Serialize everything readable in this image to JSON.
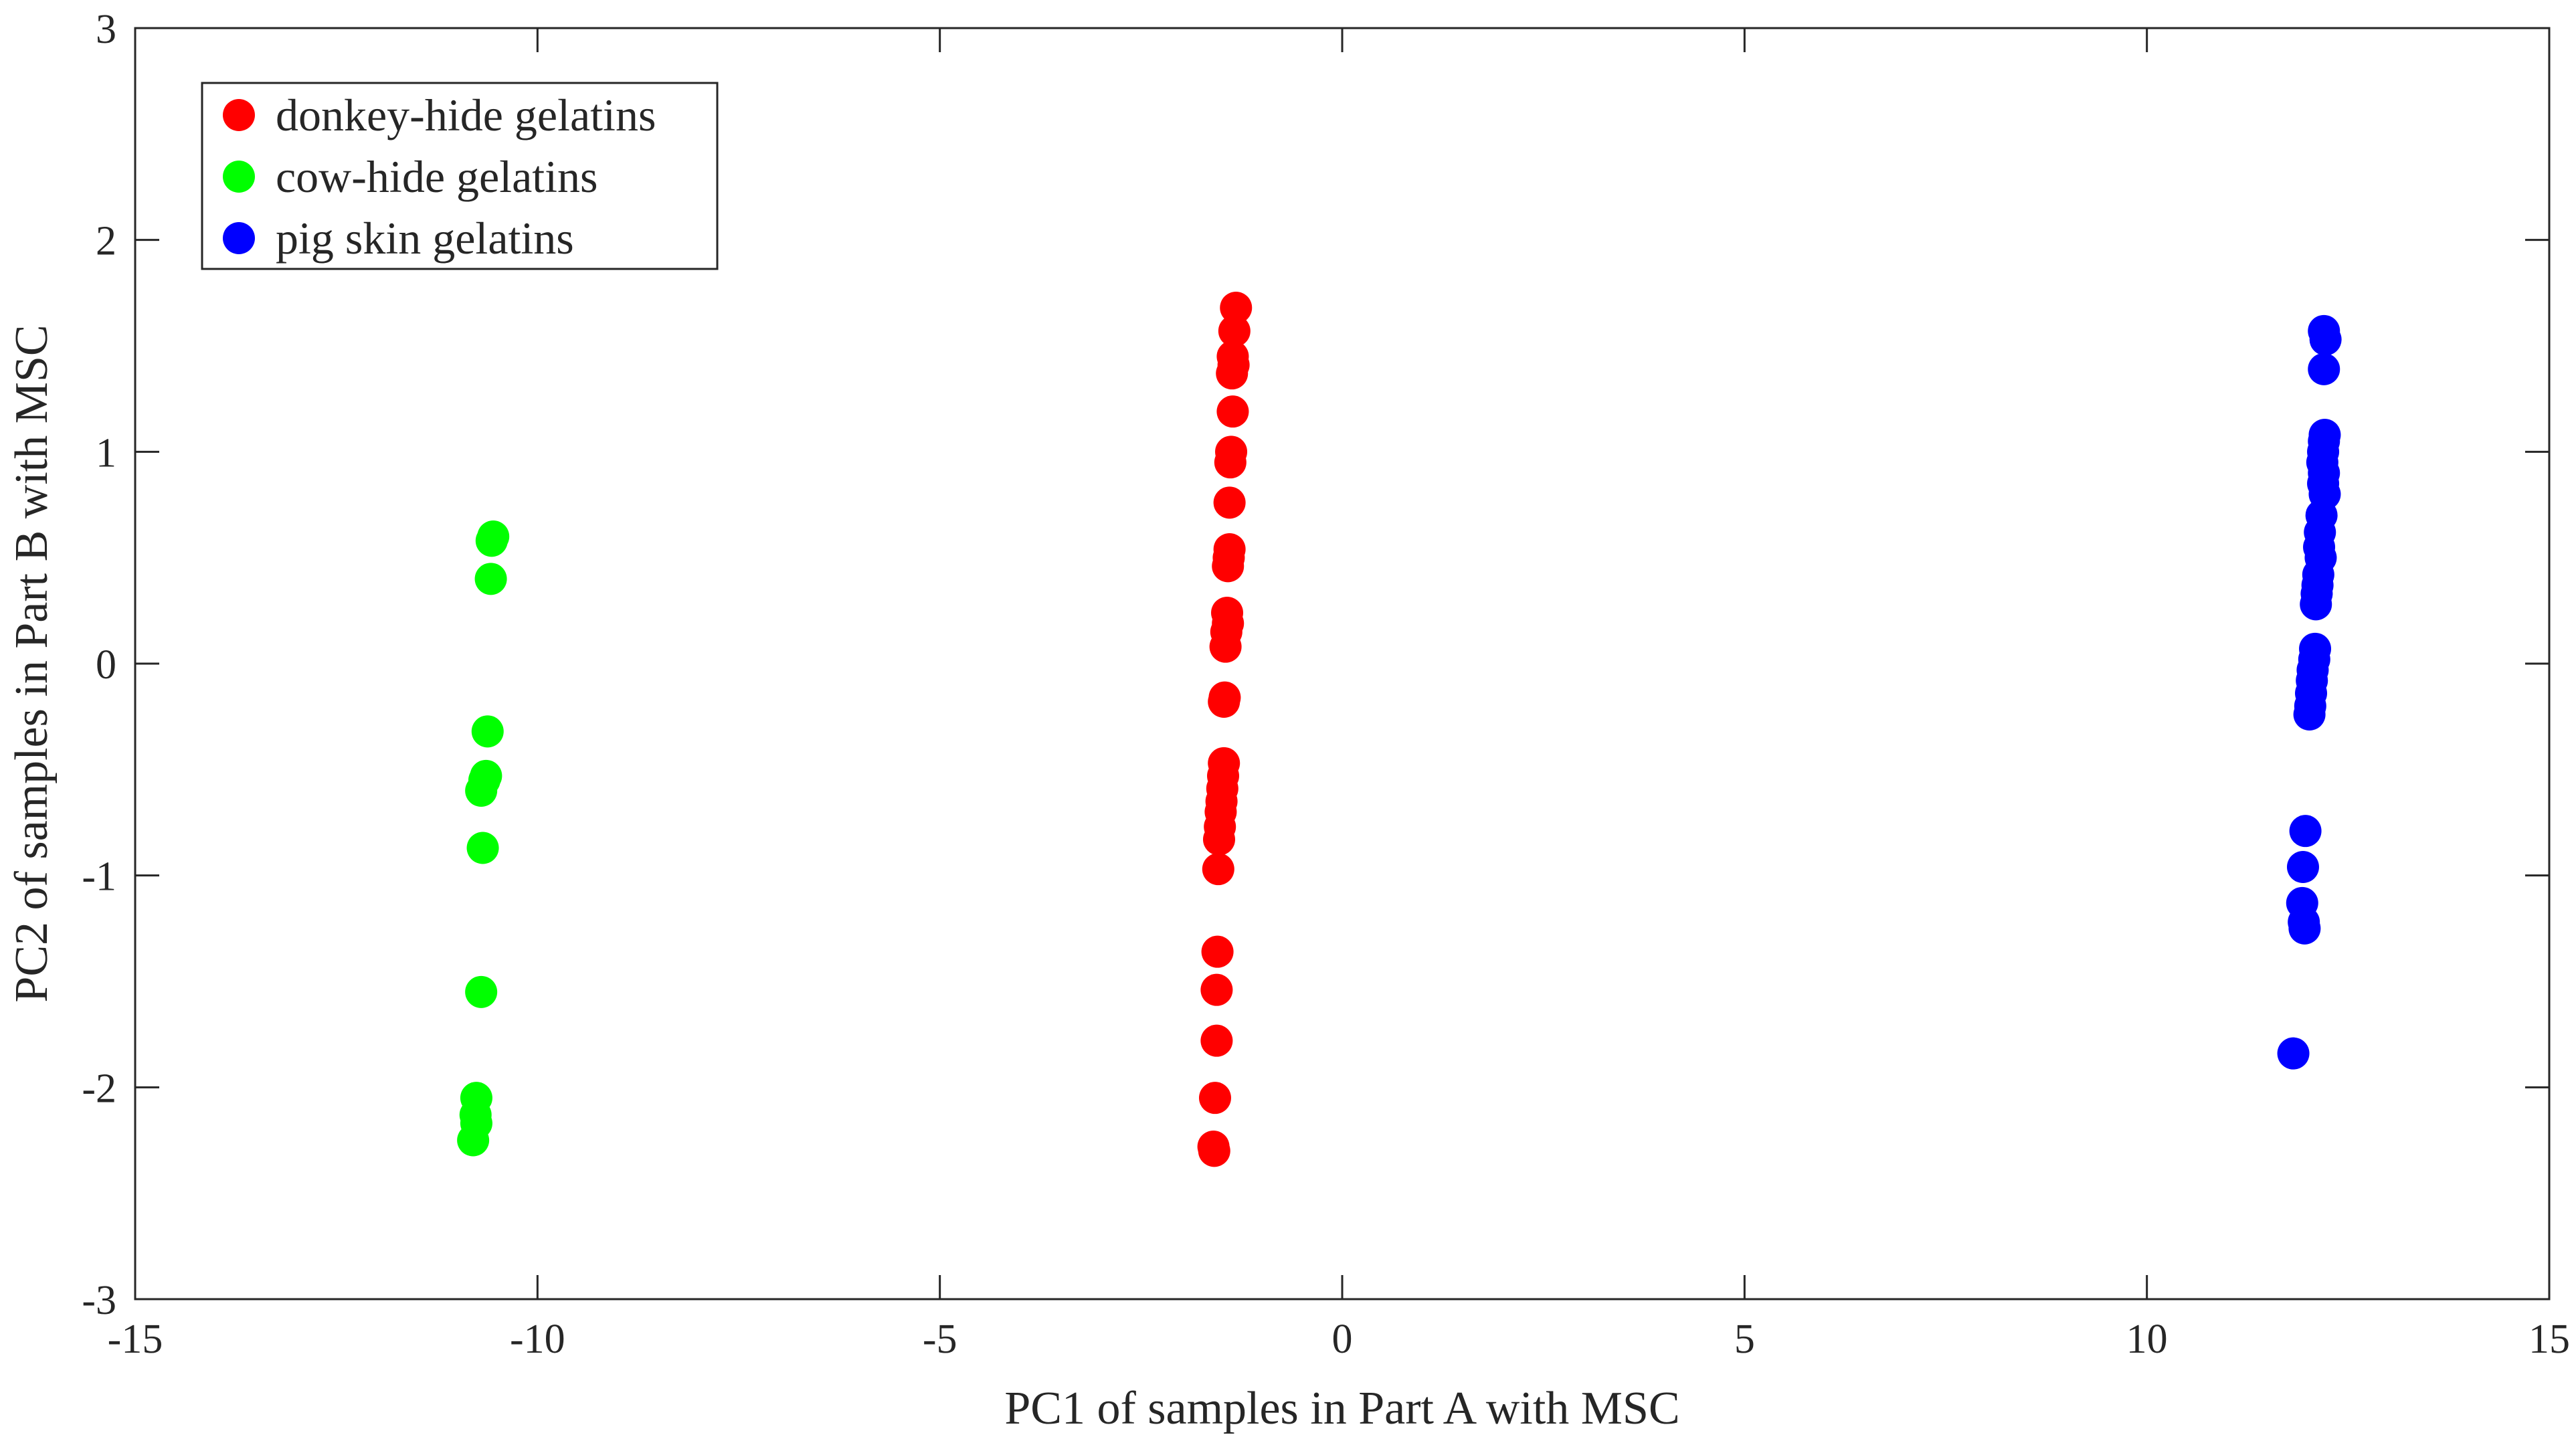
{
  "chart_data": {
    "type": "scatter",
    "title": "",
    "xlabel": "PC1 of samples in Part A with MSC",
    "ylabel": "PC2 of samples in Part B with MSC",
    "xlim": [
      -15,
      15
    ],
    "ylim": [
      -3,
      3
    ],
    "xticks": [
      "-15",
      "-10",
      "-5",
      "0",
      "5",
      "10",
      "15"
    ],
    "yticks": [
      "-3",
      "-2",
      "-1",
      "0",
      "1",
      "2",
      "3"
    ],
    "grid": false,
    "legend_position": "top-left",
    "series": [
      {
        "name": "donkey-hide gelatins",
        "color": "#ff0000",
        "points": [
          [
            -1.32,
            1.68
          ],
          [
            -1.34,
            1.57
          ],
          [
            -1.36,
            1.45
          ],
          [
            -1.35,
            1.41
          ],
          [
            -1.37,
            1.37
          ],
          [
            -1.36,
            1.19
          ],
          [
            -1.38,
            1.0
          ],
          [
            -1.39,
            0.95
          ],
          [
            -1.4,
            0.76
          ],
          [
            -1.4,
            0.54
          ],
          [
            -1.41,
            0.5
          ],
          [
            -1.42,
            0.46
          ],
          [
            -1.43,
            0.24
          ],
          [
            -1.42,
            0.19
          ],
          [
            -1.44,
            0.15
          ],
          [
            -1.45,
            0.08
          ],
          [
            -1.46,
            -0.16
          ],
          [
            -1.47,
            -0.18
          ],
          [
            -1.47,
            -0.47
          ],
          [
            -1.48,
            -0.53
          ],
          [
            -1.49,
            -0.59
          ],
          [
            -1.5,
            -0.65
          ],
          [
            -1.51,
            -0.7
          ],
          [
            -1.52,
            -0.77
          ],
          [
            -1.53,
            -0.83
          ],
          [
            -1.54,
            -0.97
          ],
          [
            -1.55,
            -1.36
          ],
          [
            -1.56,
            -1.54
          ],
          [
            -1.56,
            -1.78
          ],
          [
            -1.58,
            -2.05
          ],
          [
            -1.6,
            -2.28
          ],
          [
            -1.59,
            -2.3
          ]
        ]
      },
      {
        "name": "cow-hide gelatins",
        "color": "#00ff00",
        "points": [
          [
            -10.55,
            0.6
          ],
          [
            -10.57,
            0.58
          ],
          [
            -10.58,
            0.4
          ],
          [
            -10.62,
            -0.32
          ],
          [
            -10.64,
            -0.53
          ],
          [
            -10.66,
            -0.55
          ],
          [
            -10.7,
            -0.6
          ],
          [
            -10.68,
            -0.87
          ],
          [
            -10.7,
            -1.55
          ],
          [
            -10.76,
            -2.05
          ],
          [
            -10.77,
            -2.13
          ],
          [
            -10.76,
            -2.17
          ],
          [
            -10.8,
            -2.25
          ]
        ]
      },
      {
        "name": "pig skin gelatins",
        "color": "#0000ff",
        "points": [
          [
            12.2,
            1.57
          ],
          [
            12.22,
            1.53
          ],
          [
            12.2,
            1.39
          ],
          [
            12.21,
            1.08
          ],
          [
            12.2,
            1.05
          ],
          [
            12.19,
            1.0
          ],
          [
            12.18,
            0.95
          ],
          [
            12.2,
            0.9
          ],
          [
            12.19,
            0.85
          ],
          [
            12.21,
            0.8
          ],
          [
            12.17,
            0.7
          ],
          [
            12.15,
            0.62
          ],
          [
            12.14,
            0.55
          ],
          [
            12.16,
            0.5
          ],
          [
            12.13,
            0.42
          ],
          [
            12.12,
            0.37
          ],
          [
            12.11,
            0.33
          ],
          [
            12.1,
            0.28
          ],
          [
            12.09,
            0.07
          ],
          [
            12.08,
            0.02
          ],
          [
            12.06,
            -0.03
          ],
          [
            12.05,
            -0.08
          ],
          [
            12.04,
            -0.14
          ],
          [
            12.03,
            -0.2
          ],
          [
            12.02,
            -0.24
          ],
          [
            11.97,
            -0.79
          ],
          [
            11.94,
            -0.96
          ],
          [
            11.93,
            -1.13
          ],
          [
            11.95,
            -1.22
          ],
          [
            11.96,
            -1.25
          ],
          [
            11.82,
            -1.84
          ]
        ]
      }
    ]
  }
}
